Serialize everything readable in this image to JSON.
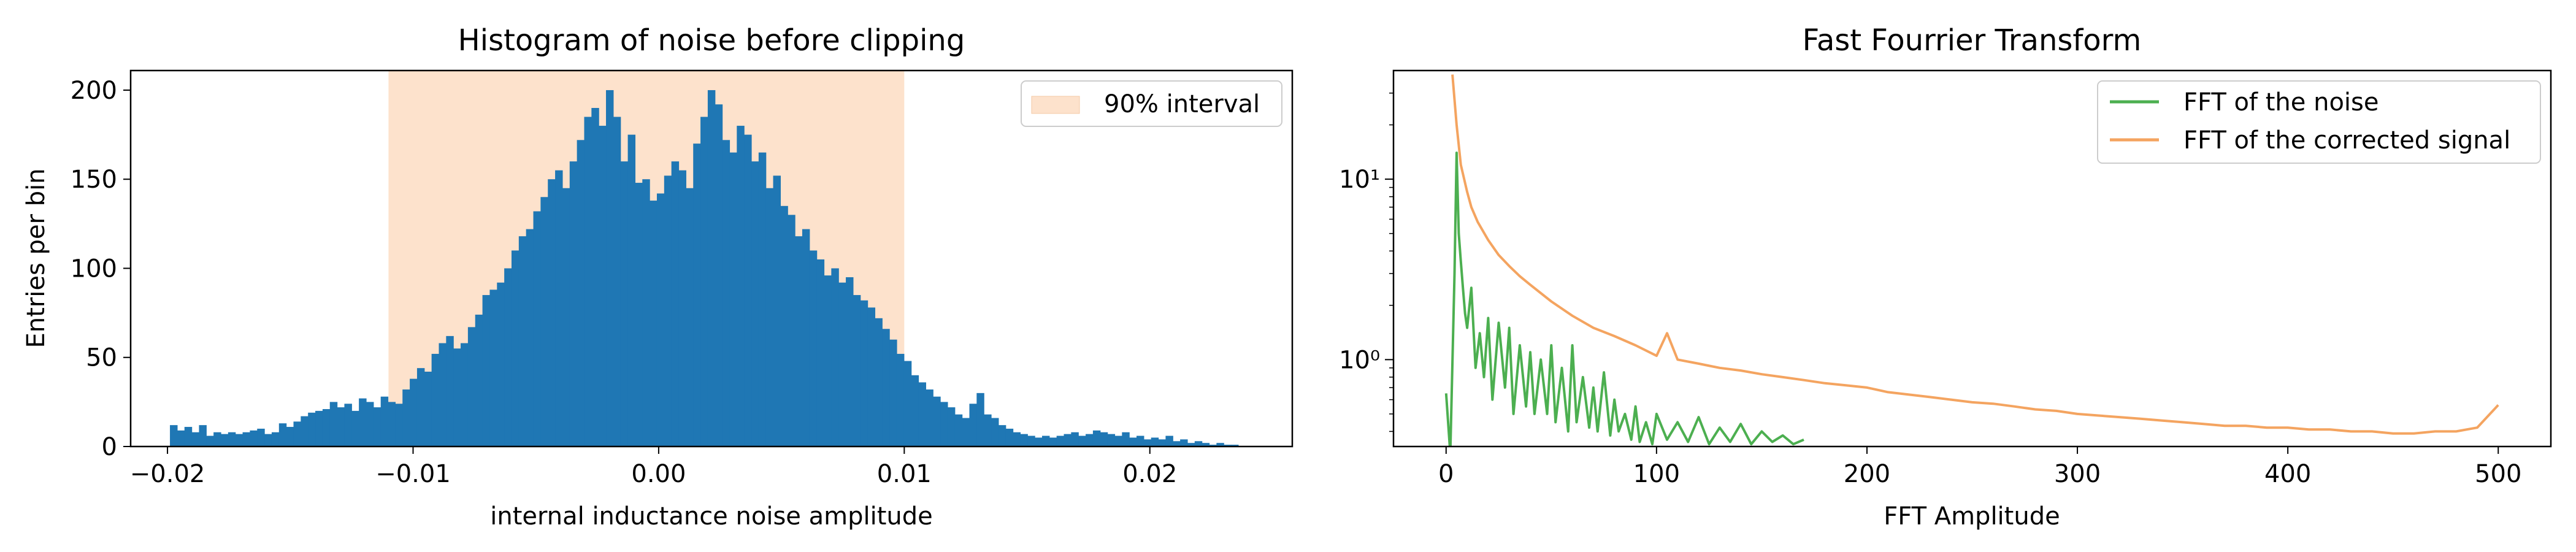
{
  "chart_data": [
    {
      "type": "bar",
      "title": "Histogram of noise before clipping",
      "xlabel": "internal inductance noise amplitude",
      "ylabel": "Entries per bin",
      "xlim": [
        -0.0215,
        0.0258
      ],
      "ylim": [
        0,
        211
      ],
      "xticks": [
        -0.02,
        -0.01,
        0.0,
        0.01,
        0.02
      ],
      "xtick_labels": [
        "−0.02",
        "−0.01",
        "0.00",
        "0.01",
        "0.02"
      ],
      "yticks": [
        0,
        50,
        100,
        150,
        200
      ],
      "ytick_labels": [
        "0",
        "50",
        "100",
        "150",
        "200"
      ],
      "grid": false,
      "bar_color": "#1f77b4",
      "bin_range": [
        -0.0199,
        0.0236
      ],
      "values": [
        12,
        9,
        11,
        8,
        12,
        6,
        8,
        7,
        8,
        7,
        8,
        9,
        10,
        7,
        8,
        13,
        11,
        14,
        17,
        19,
        20,
        21,
        25,
        22,
        24,
        20,
        27,
        25,
        22,
        28,
        25,
        24,
        32,
        38,
        44,
        42,
        52,
        58,
        62,
        55,
        58,
        67,
        74,
        85,
        88,
        92,
        100,
        110,
        118,
        122,
        132,
        140,
        150,
        155,
        145,
        160,
        172,
        185,
        190,
        180,
        200,
        185,
        160,
        175,
        148,
        150,
        138,
        142,
        152,
        160,
        155,
        145,
        170,
        185,
        200,
        192,
        172,
        165,
        180,
        175,
        160,
        165,
        145,
        152,
        135,
        130,
        118,
        122,
        110,
        105,
        96,
        100,
        92,
        95,
        85,
        82,
        78,
        72,
        66,
        60,
        52,
        48,
        40,
        36,
        32,
        28,
        25,
        22,
        18,
        16,
        24,
        30,
        18,
        16,
        12,
        10,
        8,
        7,
        6,
        5,
        6,
        5,
        6,
        7,
        8,
        6,
        7,
        9,
        8,
        7,
        6,
        8,
        5,
        6,
        4,
        5,
        4,
        6,
        3,
        4,
        2,
        3,
        2,
        1,
        2,
        1,
        1
      ],
      "shaded_interval": {
        "range": [
          -0.011,
          0.01
        ],
        "color": "#fde2cc",
        "label": "90% interval"
      },
      "legend_position": "top-right"
    },
    {
      "type": "line",
      "title": "Fast Fourrier Transform",
      "xlabel": "FFT Amplitude",
      "ylabel": "",
      "xlim": [
        -25,
        525
      ],
      "ylim": [
        0.33,
        40
      ],
      "yscale": "log",
      "xticks": [
        0,
        100,
        200,
        300,
        400,
        500
      ],
      "xtick_labels": [
        "0",
        "100",
        "200",
        "300",
        "400",
        "500"
      ],
      "yticks": [
        1,
        10
      ],
      "ytick_labels": [
        "10⁰",
        "10¹"
      ],
      "grid": false,
      "legend_position": "top-right",
      "series": [
        {
          "name": "FFT of the noise",
          "color": "#4caf50",
          "x": [
            0,
            2,
            4,
            5,
            6,
            7,
            8,
            9,
            10,
            12,
            14,
            16,
            18,
            20,
            22,
            25,
            28,
            30,
            32,
            35,
            38,
            40,
            42,
            45,
            48,
            50,
            52,
            55,
            58,
            60,
            62,
            65,
            68,
            70,
            72,
            75,
            78,
            80,
            82,
            85,
            88,
            90,
            92,
            95,
            98,
            100,
            105,
            110,
            115,
            120,
            125,
            130,
            135,
            140,
            145,
            150,
            155,
            160,
            165,
            170
          ],
          "y": [
            0.65,
            0.3,
            3.0,
            14.0,
            5.0,
            3.5,
            2.5,
            1.8,
            1.5,
            2.5,
            0.9,
            1.4,
            0.8,
            1.7,
            0.6,
            1.6,
            0.7,
            1.5,
            0.5,
            1.2,
            0.55,
            1.1,
            0.5,
            1.0,
            0.5,
            1.2,
            0.45,
            0.9,
            0.4,
            1.2,
            0.45,
            0.8,
            0.42,
            0.7,
            0.4,
            0.85,
            0.38,
            0.6,
            0.4,
            0.5,
            0.36,
            0.55,
            0.35,
            0.45,
            0.34,
            0.5,
            0.36,
            0.45,
            0.35,
            0.48,
            0.34,
            0.42,
            0.35,
            0.44,
            0.34,
            0.4,
            0.35,
            0.38,
            0.34,
            0.36
          ]
        },
        {
          "name": "FFT of the corrected signal",
          "color": "#f4a460",
          "x": [
            3,
            5,
            7,
            10,
            12,
            15,
            20,
            25,
            30,
            35,
            40,
            50,
            60,
            70,
            80,
            90,
            100,
            105,
            110,
            120,
            130,
            140,
            150,
            160,
            170,
            180,
            190,
            200,
            210,
            220,
            230,
            240,
            250,
            260,
            270,
            280,
            290,
            300,
            310,
            320,
            330,
            340,
            350,
            360,
            370,
            380,
            390,
            400,
            410,
            420,
            430,
            440,
            450,
            460,
            470,
            480,
            490,
            500
          ],
          "y": [
            38,
            20,
            12,
            8.5,
            7,
            5.8,
            4.6,
            3.8,
            3.3,
            2.9,
            2.6,
            2.1,
            1.75,
            1.5,
            1.35,
            1.2,
            1.05,
            1.4,
            1.0,
            0.95,
            0.9,
            0.87,
            0.83,
            0.8,
            0.77,
            0.74,
            0.72,
            0.7,
            0.66,
            0.64,
            0.62,
            0.6,
            0.58,
            0.57,
            0.55,
            0.53,
            0.52,
            0.5,
            0.49,
            0.48,
            0.47,
            0.46,
            0.45,
            0.44,
            0.43,
            0.43,
            0.42,
            0.42,
            0.41,
            0.41,
            0.4,
            0.4,
            0.39,
            0.39,
            0.4,
            0.4,
            0.42,
            0.56
          ]
        }
      ]
    }
  ]
}
